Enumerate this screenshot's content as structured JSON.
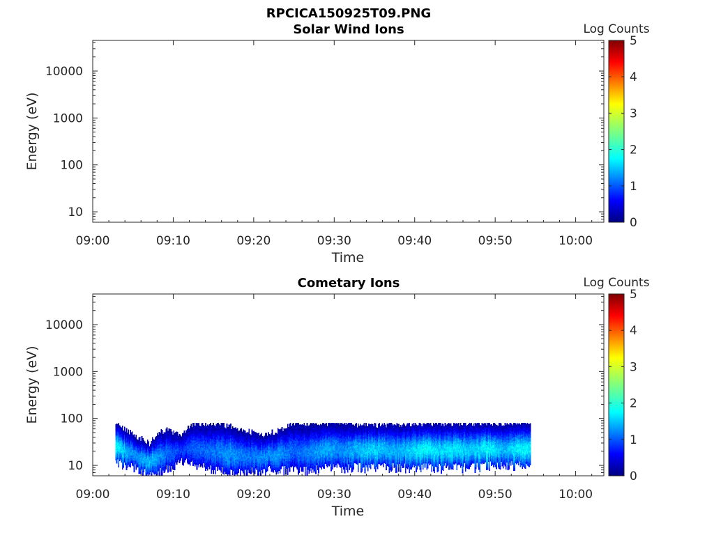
{
  "figure": {
    "title": "RPCICA150925T09.PNG"
  },
  "colormap": "jet",
  "chart_data": [
    {
      "type": "heatmap",
      "title": "Solar Wind Ions",
      "xlabel": "Time",
      "ylabel": "Energy (eV)",
      "yscale": "log",
      "xticks": [
        "09:00",
        "09:10",
        "09:20",
        "09:30",
        "09:40",
        "09:50",
        "10:00"
      ],
      "xlim_minutes": [
        0,
        63.5
      ],
      "yticks": [
        10,
        100,
        1000,
        10000
      ],
      "ytick_labels": [
        "10",
        "100",
        "1000",
        "10000"
      ],
      "ylim": [
        6,
        45000
      ],
      "colorbar": {
        "label": "Log Counts",
        "range": [
          0,
          5
        ],
        "ticks": [
          "0",
          "1",
          "2",
          "3",
          "4",
          "5"
        ]
      },
      "data": []
    },
    {
      "type": "heatmap",
      "title": "Cometary Ions",
      "xlabel": "Time",
      "ylabel": "Energy (eV)",
      "yscale": "log",
      "xticks": [
        "09:00",
        "09:10",
        "09:20",
        "09:30",
        "09:40",
        "09:50",
        "10:00"
      ],
      "xlim_minutes": [
        0,
        63.5
      ],
      "yticks": [
        10,
        100,
        1000,
        10000
      ],
      "ytick_labels": [
        "10",
        "100",
        "1000",
        "10000"
      ],
      "ylim": [
        6,
        45000
      ],
      "colorbar": {
        "label": "Log Counts",
        "range": [
          0,
          5
        ],
        "ticks": [
          "0",
          "1",
          "2",
          "3",
          "4",
          "5"
        ]
      },
      "data_time_range_minutes": [
        2.8,
        54.3
      ],
      "data_energy_range_eV": [
        6,
        80
      ],
      "segments": [
        {
          "t": 2.8,
          "e_lo": 12,
          "e_hi": 80,
          "peak": 1.9
        },
        {
          "t": 5.0,
          "e_lo": 9,
          "e_hi": 45,
          "peak": 1.3
        },
        {
          "t": 7.0,
          "e_lo": 6,
          "e_hi": 30,
          "peak": 1.6
        },
        {
          "t": 9.0,
          "e_lo": 8,
          "e_hi": 60,
          "peak": 1.2
        },
        {
          "t": 11.0,
          "e_lo": 12,
          "e_hi": 40,
          "peak": 0.9
        },
        {
          "t": 12.5,
          "e_lo": 10,
          "e_hi": 80,
          "peak": 1.1
        },
        {
          "t": 15.0,
          "e_lo": 8,
          "e_hi": 80,
          "peak": 1.2
        },
        {
          "t": 17.0,
          "e_lo": 7,
          "e_hi": 70,
          "peak": 1.4
        },
        {
          "t": 19.0,
          "e_lo": 7,
          "e_hi": 55,
          "peak": 1.2
        },
        {
          "t": 21.0,
          "e_lo": 8,
          "e_hi": 45,
          "peak": 1.3
        },
        {
          "t": 23.0,
          "e_lo": 8,
          "e_hi": 55,
          "peak": 1.4
        },
        {
          "t": 25.0,
          "e_lo": 8,
          "e_hi": 80,
          "peak": 1.1
        },
        {
          "t": 27.0,
          "e_lo": 8,
          "e_hi": 80,
          "peak": 1.3
        },
        {
          "t": 29.0,
          "e_lo": 9,
          "e_hi": 80,
          "peak": 1.5
        },
        {
          "t": 31.0,
          "e_lo": 9,
          "e_hi": 80,
          "peak": 1.3
        },
        {
          "t": 33.0,
          "e_lo": 9,
          "e_hi": 75,
          "peak": 1.6
        },
        {
          "t": 35.0,
          "e_lo": 9,
          "e_hi": 75,
          "peak": 1.7
        },
        {
          "t": 37.0,
          "e_lo": 9,
          "e_hi": 75,
          "peak": 1.5
        },
        {
          "t": 39.0,
          "e_lo": 9,
          "e_hi": 80,
          "peak": 1.6
        },
        {
          "t": 41.0,
          "e_lo": 9,
          "e_hi": 80,
          "peak": 1.9
        },
        {
          "t": 43.0,
          "e_lo": 9,
          "e_hi": 80,
          "peak": 1.7
        },
        {
          "t": 45.0,
          "e_lo": 9,
          "e_hi": 80,
          "peak": 1.8
        },
        {
          "t": 47.0,
          "e_lo": 9,
          "e_hi": 80,
          "peak": 1.6
        },
        {
          "t": 49.0,
          "e_lo": 10,
          "e_hi": 80,
          "peak": 1.9
        },
        {
          "t": 51.0,
          "e_lo": 10,
          "e_hi": 80,
          "peak": 1.5
        },
        {
          "t": 53.0,
          "e_lo": 10,
          "e_hi": 80,
          "peak": 1.9
        },
        {
          "t": 54.3,
          "e_lo": 10,
          "e_hi": 80,
          "peak": 1.8
        }
      ]
    }
  ]
}
